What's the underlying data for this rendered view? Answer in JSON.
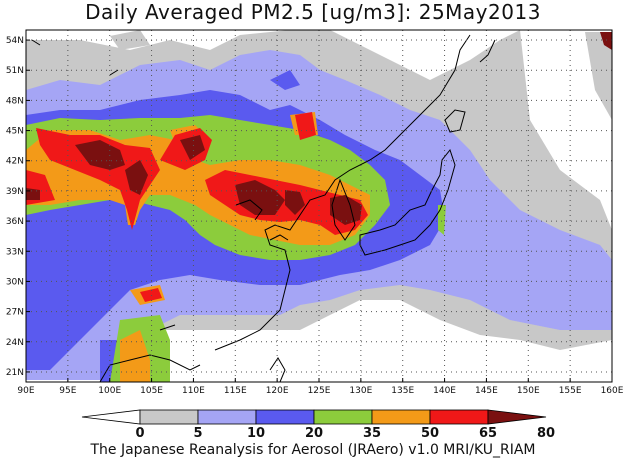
{
  "title": "Daily Averaged PM2.5 [ug/m3]: 25May2013",
  "credit": "The Japanese Reanalysis for Aerosol (JRAero) v1.0 MRI/KU_RIAM",
  "map": {
    "lon_range": [
      90,
      160
    ],
    "lat_range": [
      20,
      55
    ],
    "lon_ticks": [
      "90E",
      "95E",
      "100E",
      "105E",
      "110E",
      "115E",
      "120E",
      "125E",
      "130E",
      "135E",
      "140E",
      "145E",
      "150E",
      "155E",
      "160E"
    ],
    "lat_ticks": [
      "21N",
      "24N",
      "27N",
      "30N",
      "33N",
      "36N",
      "39N",
      "42N",
      "45N",
      "48N",
      "51N",
      "54N"
    ],
    "grid": "dotted"
  },
  "colorbar": {
    "levels": [
      "0",
      "5",
      "10",
      "20",
      "35",
      "50",
      "65",
      "80"
    ],
    "colors": [
      "#ffffff",
      "#c8c8c8",
      "#a5a5f5",
      "#5a5aef",
      "#8ccc3c",
      "#f39a18",
      "#f01818",
      "#7a1010"
    ]
  }
}
